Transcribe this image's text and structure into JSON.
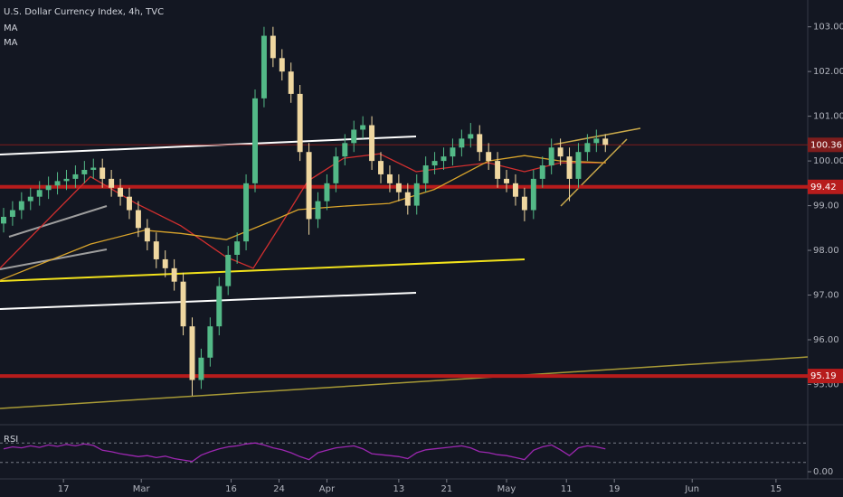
{
  "chart_data": {
    "type": "candlestick",
    "title": "U.S. Dollar Currency Index, 4h, TVC",
    "x": [
      6,
      7.5,
      9,
      10.5,
      12,
      13.5,
      15,
      16.5,
      18,
      19.5,
      21,
      22.5,
      24,
      25.5,
      27,
      28.5,
      30,
      31.5,
      33,
      34.5,
      36,
      37.5,
      39,
      40.5,
      42,
      43.5,
      45,
      46.5,
      48,
      49.5,
      51,
      52.5,
      54,
      55.5,
      57,
      58.5,
      60,
      61.5,
      63,
      64.5,
      66,
      67.5,
      69,
      70.5,
      72,
      73.5,
      75,
      76.5,
      78,
      79.5,
      81,
      82.5,
      84,
      85.5,
      87,
      88.5,
      90,
      91.5,
      93,
      94.5,
      96,
      97.5,
      99,
      100.5,
      102,
      103.5,
      105,
      106.5
    ],
    "open": [
      98.6,
      98.75,
      98.9,
      99.1,
      99.2,
      99.35,
      99.45,
      99.55,
      99.6,
      99.7,
      99.8,
      99.85,
      99.6,
      99.4,
      99.2,
      98.9,
      98.5,
      98.2,
      97.8,
      97.6,
      97.3,
      96.3,
      95.1,
      95.6,
      96.3,
      97.2,
      97.9,
      98.2,
      99.5,
      101.4,
      102.8,
      102.3,
      102.0,
      101.5,
      100.2,
      98.7,
      99.1,
      99.5,
      100.1,
      100.4,
      100.7,
      100.8,
      100.0,
      99.7,
      99.5,
      99.3,
      99.0,
      99.5,
      99.9,
      100.0,
      100.1,
      100.3,
      100.5,
      100.6,
      100.2,
      100.0,
      99.6,
      99.5,
      99.2,
      98.9,
      99.6,
      99.9,
      100.3,
      100.1,
      99.6,
      100.2,
      100.4,
      100.5
    ],
    "high": [
      98.95,
      99.1,
      99.3,
      99.4,
      99.55,
      99.65,
      99.75,
      99.8,
      99.9,
      100.0,
      100.05,
      100.05,
      99.8,
      99.6,
      99.4,
      99.1,
      98.7,
      98.4,
      98.0,
      97.8,
      97.5,
      96.5,
      95.8,
      96.5,
      97.4,
      98.1,
      98.4,
      99.7,
      101.6,
      103.0,
      103.0,
      102.5,
      102.2,
      101.7,
      100.4,
      99.3,
      99.7,
      100.3,
      100.6,
      100.9,
      101.0,
      101.0,
      100.2,
      99.9,
      99.7,
      99.5,
      99.7,
      100.1,
      100.2,
      100.3,
      100.5,
      100.7,
      100.85,
      100.8,
      100.4,
      100.2,
      99.8,
      99.7,
      99.4,
      99.8,
      100.1,
      100.5,
      100.5,
      100.3,
      100.4,
      100.6,
      100.7,
      100.6
    ],
    "low": [
      98.4,
      98.55,
      98.7,
      98.9,
      99.0,
      99.15,
      99.25,
      99.35,
      99.4,
      99.5,
      99.6,
      99.4,
      99.2,
      99.0,
      98.7,
      98.3,
      98.0,
      97.6,
      97.4,
      97.1,
      96.1,
      94.75,
      94.9,
      95.4,
      96.1,
      97.0,
      97.7,
      98.0,
      99.3,
      101.2,
      102.1,
      101.8,
      101.3,
      100.0,
      98.35,
      98.5,
      98.9,
      99.3,
      99.9,
      100.2,
      100.5,
      99.8,
      99.5,
      99.3,
      99.1,
      98.8,
      98.8,
      99.3,
      99.7,
      99.8,
      99.9,
      100.1,
      100.3,
      100.0,
      99.8,
      99.4,
      99.3,
      99.0,
      98.65,
      98.7,
      99.4,
      99.7,
      99.9,
      99.1,
      99.4,
      100.0,
      100.2,
      100.2
    ],
    "close": [
      98.75,
      98.9,
      99.1,
      99.2,
      99.35,
      99.45,
      99.55,
      99.6,
      99.7,
      99.8,
      99.85,
      99.6,
      99.4,
      99.2,
      98.9,
      98.5,
      98.2,
      97.8,
      97.6,
      97.3,
      96.3,
      95.1,
      95.6,
      96.3,
      97.2,
      97.9,
      98.2,
      99.5,
      101.4,
      102.8,
      102.3,
      102.0,
      101.5,
      100.2,
      98.7,
      99.1,
      99.5,
      100.1,
      100.4,
      100.7,
      100.8,
      100.0,
      99.7,
      99.5,
      99.3,
      99.0,
      99.5,
      99.9,
      100.0,
      100.1,
      100.3,
      100.5,
      100.6,
      100.2,
      100.0,
      99.6,
      99.5,
      99.2,
      98.9,
      99.6,
      99.9,
      100.3,
      100.1,
      99.6,
      100.2,
      100.4,
      100.5,
      100.36
    ],
    "up_color": "#53b987",
    "down_color": "#efd7a0",
    "xlim": [
      5.4,
      140.3
    ],
    "ylim": [
      94.1,
      103.6
    ],
    "yticks": [
      {
        "value": 95,
        "label": "95.00"
      },
      {
        "value": 96,
        "label": "96.00"
      },
      {
        "value": 97,
        "label": "97.00"
      },
      {
        "value": 98,
        "label": "98.00"
      },
      {
        "value": 99,
        "label": "99.00"
      },
      {
        "value": 100,
        "label": "100.00"
      },
      {
        "value": 101,
        "label": "101.00"
      },
      {
        "value": 102,
        "label": "102.00"
      },
      {
        "value": 103,
        "label": "103.00"
      }
    ],
    "xticks": [
      {
        "value": 16,
        "label": "17"
      },
      {
        "value": 29,
        "label": "Mar"
      },
      {
        "value": 44,
        "label": "16"
      },
      {
        "value": 52,
        "label": "24"
      },
      {
        "value": 60,
        "label": "Apr"
      },
      {
        "value": 72,
        "label": "13"
      },
      {
        "value": 80,
        "label": "21"
      },
      {
        "value": 90,
        "label": "May"
      },
      {
        "value": 100,
        "label": "11"
      },
      {
        "value": 108,
        "label": "19"
      },
      {
        "value": 121,
        "label": "Jun"
      },
      {
        "value": 135,
        "label": "15"
      }
    ],
    "series": [
      {
        "name": "MA",
        "color": "#d32f2f",
        "x": [
          5.4,
          20.5,
          28.1,
          35.6,
          43.2,
          47.7,
          52.2,
          56.8,
          62.8,
          68.8,
          74.9,
          80.9,
          87,
          93,
          99,
          106.6
        ],
        "values": [
          97.6,
          99.65,
          99.05,
          98.55,
          97.85,
          97.6,
          98.55,
          99.55,
          100.06,
          100.16,
          99.76,
          99.86,
          99.96,
          99.76,
          99.96,
          99.96
        ]
      },
      {
        "name": "MA",
        "color": "#d9a42b",
        "x": [
          5.4,
          20.5,
          29.6,
          35.6,
          43.2,
          50.7,
          55.2,
          62.8,
          70.4,
          77.9,
          87,
          93,
          99,
          106.6
        ],
        "values": [
          97.33,
          98.14,
          98.45,
          98.38,
          98.24,
          98.65,
          98.91,
          98.99,
          99.05,
          99.36,
          100.0,
          100.12,
          100.0,
          99.96
        ]
      }
    ],
    "levels": [
      99.42,
      95.19
    ],
    "level_color": "#b71c1c",
    "last_price": 100.36,
    "last_price_color": "#7f1d1d",
    "rsi": {
      "name": "RSI",
      "color": "#9c27b0",
      "ylim": [
        0,
        100
      ],
      "bands": [
        30,
        70
      ],
      "yticks": [
        {
          "value": 0,
          "label": "0.00"
        }
      ],
      "values": [
        58,
        62,
        60,
        64,
        61,
        66,
        63,
        67,
        64,
        68,
        65,
        55,
        52,
        48,
        45,
        42,
        44,
        40,
        43,
        38,
        35,
        32,
        45,
        52,
        58,
        62,
        64,
        68,
        70,
        66,
        60,
        56,
        50,
        42,
        36,
        50,
        55,
        60,
        62,
        64,
        58,
        48,
        46,
        44,
        42,
        38,
        50,
        56,
        58,
        60,
        62,
        64,
        60,
        52,
        50,
        46,
        44,
        40,
        36,
        55,
        62,
        66,
        56,
        44,
        60,
        64,
        62,
        58
      ]
    }
  }
}
